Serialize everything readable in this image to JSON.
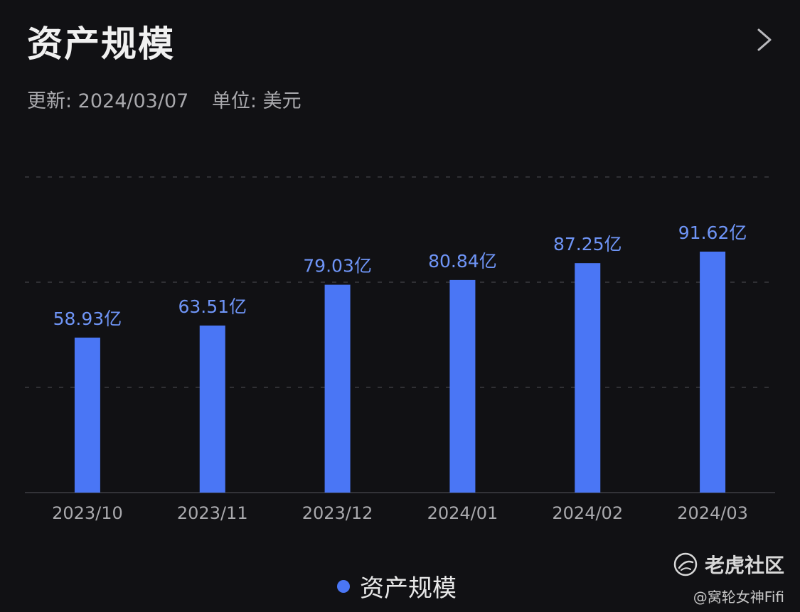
{
  "header": {
    "title": "资产规模",
    "updated": "更新: 2024/03/07",
    "unit": "单位: 美元"
  },
  "chart_data": {
    "type": "bar",
    "categories": [
      "2023/10",
      "2023/11",
      "2023/12",
      "2024/01",
      "2024/02",
      "2024/03"
    ],
    "values": [
      58.93,
      63.51,
      79.03,
      80.84,
      87.25,
      91.62
    ],
    "data_labels": [
      "58.93亿",
      "63.51亿",
      "79.03亿",
      "80.84亿",
      "87.25亿",
      "91.62亿"
    ],
    "series": [
      {
        "name": "资产规模",
        "values": [
          58.93,
          63.51,
          79.03,
          80.84,
          87.25,
          91.62
        ]
      }
    ],
    "ylim": [
      0,
      120
    ],
    "grid": true,
    "legend_position": "bottom-center",
    "colors": {
      "bar": "#4a76f5",
      "label": "#6f95f7",
      "tick": "#a9a9ad",
      "grid": "#3a3a3e",
      "axis": "#3f3f44"
    }
  },
  "legend": {
    "label": "资产规模"
  },
  "watermark": {
    "brand": "老虎社区",
    "handle": "@窝轮女神Fifi"
  },
  "icons": {
    "more": "chevron-right-icon",
    "logo": "tiger-logo-icon"
  }
}
